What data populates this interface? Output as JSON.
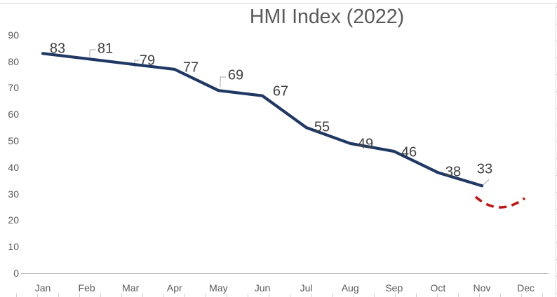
{
  "title": "HMI Index (2022)",
  "colors": {
    "series_line": "#1F3864",
    "annotation_red": "#C21313",
    "title_text": "#595959",
    "axis_text": "#595959",
    "data_label_text": "#404040",
    "axis_line": "#BFBFBF",
    "leader_line": "#A6A6A6"
  },
  "chart_data": {
    "type": "line",
    "title": "HMI Index (2022)",
    "categories": [
      "Jan",
      "Feb",
      "Mar",
      "Apr",
      "May",
      "Jun",
      "Jul",
      "Aug",
      "Sep",
      "Oct",
      "Nov",
      "Dec"
    ],
    "series": [
      {
        "name": "HMI Index",
        "values": [
          83,
          81,
          79,
          77,
          69,
          67,
          55,
          49,
          46,
          38,
          33,
          null
        ]
      }
    ],
    "data_labels": [
      "83",
      "81",
      "79",
      "77",
      "69",
      "67",
      "55",
      "49",
      "46",
      "38",
      "33"
    ],
    "yticks": [
      0,
      10,
      20,
      30,
      40,
      50,
      60,
      70,
      80,
      90
    ],
    "ylim": [
      0,
      95
    ],
    "grid": "off",
    "legend": "none",
    "annotations": [
      {
        "shape": "hand-drawn dashed curve",
        "color": "#C21313",
        "location": "below the line between Nov and Dec"
      }
    ]
  }
}
